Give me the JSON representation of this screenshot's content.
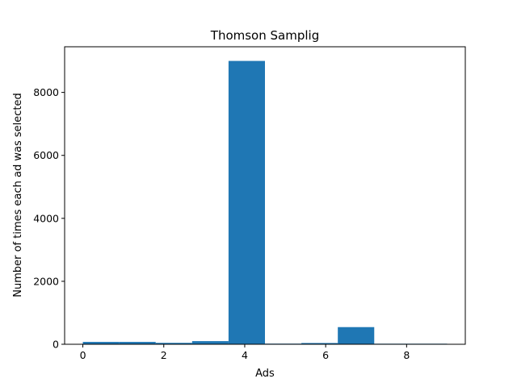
{
  "chart_data": {
    "type": "bar",
    "title": "Thomson Samplig",
    "xlabel": "Ads",
    "ylabel": "Number of times each ad was selected",
    "bins": [
      {
        "x0": 0.0,
        "x1": 0.9,
        "value": 75
      },
      {
        "x0": 0.9,
        "x1": 1.8,
        "value": 75
      },
      {
        "x0": 1.8,
        "x1": 2.7,
        "value": 45
      },
      {
        "x0": 2.7,
        "x1": 3.6,
        "value": 100
      },
      {
        "x0": 3.6,
        "x1": 4.5,
        "value": 9000
      },
      {
        "x0": 4.5,
        "x1": 5.4,
        "value": 20
      },
      {
        "x0": 5.4,
        "x1": 6.3,
        "value": 40
      },
      {
        "x0": 6.3,
        "x1": 7.2,
        "value": 545
      },
      {
        "x0": 7.2,
        "x1": 8.1,
        "value": 18
      },
      {
        "x0": 8.1,
        "x1": 9.0,
        "value": 18
      }
    ],
    "xlim": [
      -0.45,
      9.45
    ],
    "ylim": [
      0,
      9450
    ],
    "xticks": [
      0,
      2,
      4,
      6,
      8
    ],
    "xtick_labels": [
      "0",
      "2",
      "4",
      "6",
      "8"
    ],
    "yticks": [
      0,
      2000,
      4000,
      6000,
      8000
    ],
    "ytick_labels": [
      "0",
      "2000",
      "4000",
      "6000",
      "8000"
    ],
    "bar_color": "#1f77b4",
    "grid": false,
    "legend": false
  }
}
